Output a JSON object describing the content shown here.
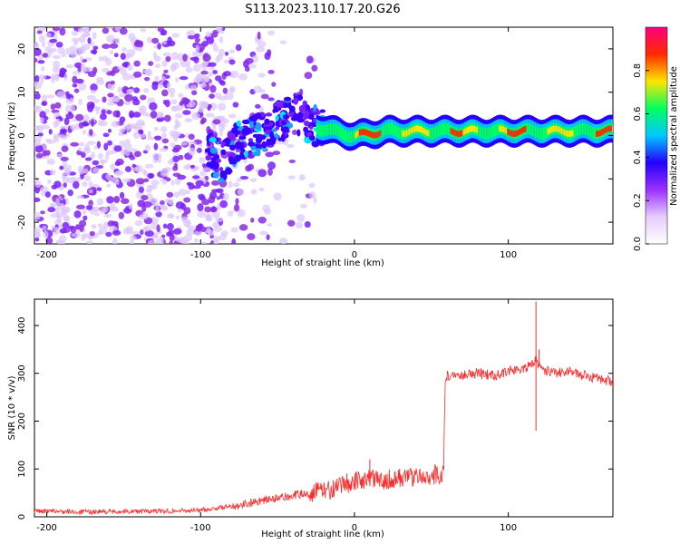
{
  "title": "S113.2023.110.17.20.G26",
  "chart_data": [
    {
      "type": "heatmap",
      "xlabel": "Height of straight line (km)",
      "ylabel": "Frequency (Hz)",
      "xlim": [
        -208,
        168
      ],
      "ylim": [
        -25,
        25
      ],
      "xticks": [
        -200,
        -100,
        0,
        100
      ],
      "yticks": [
        -20,
        -10,
        0,
        10,
        20
      ],
      "colorbar": {
        "label": "Normalized spectral amplitude",
        "range": [
          0,
          1
        ],
        "ticks": [
          0.0,
          0.2,
          0.4,
          0.6,
          0.8
        ],
        "colors": [
          "#ffffff",
          "#e6ccff",
          "#9b30ff",
          "#2400ff",
          "#00c8ff",
          "#00ff60",
          "#ffe600",
          "#ff2a00",
          "#ff0080"
        ]
      },
      "ridge": {
        "x": [
          -95,
          -85,
          -75,
          -65,
          -55,
          -45,
          -40,
          -35,
          -25,
          -15,
          0,
          20,
          40,
          60,
          80,
          100,
          120,
          140,
          168
        ],
        "freq": [
          -4,
          -6,
          -1,
          0,
          2,
          4,
          6,
          4,
          2,
          1,
          0,
          1,
          1,
          1,
          1,
          1,
          1,
          1,
          1
        ]
      }
    },
    {
      "type": "line",
      "xlabel": "Height of straight line (km)",
      "ylabel": "SNR (10 * v/v)",
      "xlim": [
        -208,
        168
      ],
      "ylim": [
        0,
        455
      ],
      "xticks": [
        -200,
        -100,
        0,
        100
      ],
      "yticks": [
        0,
        100,
        200,
        300,
        400
      ],
      "series": [
        {
          "color": "#ff2a2a",
          "x": [
            -208,
            -180,
            -150,
            -120,
            -100,
            -90,
            -80,
            -70,
            -60,
            -50,
            -40,
            -30,
            -20,
            -10,
            -5,
            0,
            5,
            10,
            15,
            20,
            30,
            40,
            50,
            58,
            59,
            60,
            70,
            80,
            90,
            100,
            110,
            115,
            118,
            120,
            125,
            130,
            140,
            150,
            160,
            168
          ],
          "y": [
            12,
            10,
            11,
            12,
            14,
            18,
            22,
            28,
            35,
            38,
            45,
            50,
            55,
            60,
            70,
            72,
            78,
            80,
            75,
            78,
            82,
            85,
            88,
            88,
            290,
            295,
            298,
            300,
            295,
            305,
            310,
            320,
            330,
            315,
            305,
            300,
            305,
            295,
            290,
            280
          ]
        }
      ],
      "spikes": [
        {
          "x": 118,
          "y": 450
        },
        {
          "x": 118,
          "y": 180
        },
        {
          "x": 120,
          "y": 350
        },
        {
          "x": 10,
          "y": 120
        },
        {
          "x": -5,
          "y": 90
        }
      ]
    }
  ]
}
